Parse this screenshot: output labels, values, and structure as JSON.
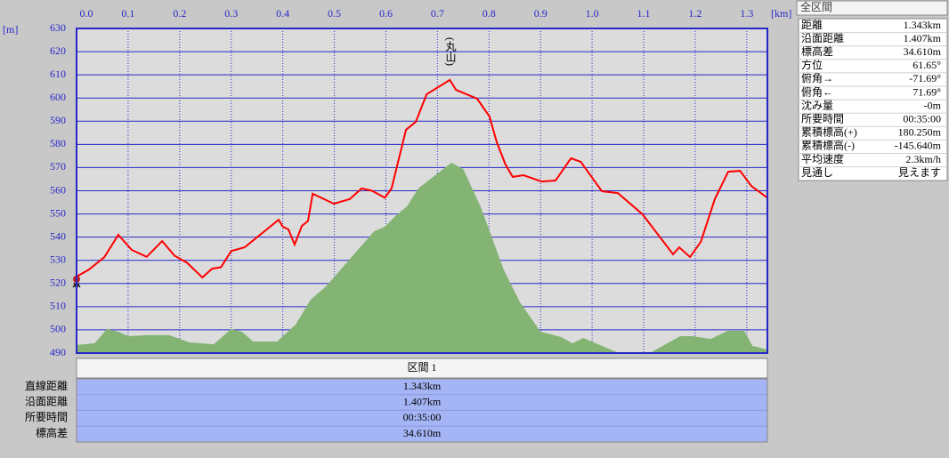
{
  "chart_data": {
    "type": "line",
    "xlabel": "[km]",
    "ylabel": "[m]",
    "xlim": [
      0,
      1.34
    ],
    "ylim": [
      490,
      630
    ],
    "xticks": [
      {
        "value": 0,
        "label": "0.0"
      },
      0.1,
      0.2,
      0.3,
      0.4,
      0.5,
      0.6,
      0.7,
      0.8,
      0.9,
      {
        "value": 1,
        "label": "1.0"
      },
      1.1,
      1.2,
      1.3
    ],
    "yticks": [
      490,
      500,
      510,
      520,
      530,
      540,
      550,
      560,
      570,
      580,
      590,
      600,
      610,
      620,
      630
    ],
    "grid": true,
    "annotation": {
      "text": "(丸山)",
      "x": 0.73
    },
    "series": [
      {
        "type": "area",
        "color": "#84b474",
        "x": [
          0,
          0.035,
          0.059,
          0.081,
          0.1,
          0.136,
          0.18,
          0.219,
          0.266,
          0.3,
          0.321,
          0.342,
          0.389,
          0.425,
          0.454,
          0.484,
          0.577,
          0.598,
          0.62,
          0.641,
          0.663,
          0.727,
          0.75,
          0.784,
          0.829,
          0.86,
          0.9,
          0.94,
          0.962,
          0.983,
          1.04,
          1.054,
          1.112,
          1.171,
          1.195,
          1.23,
          1.263,
          1.295,
          1.311,
          1.34
        ],
        "values": [
          493.5,
          494.2,
          500.4,
          499.2,
          497.3,
          497.7,
          497.7,
          494.6,
          493.8,
          500.4,
          499.2,
          495,
          495,
          502.3,
          513,
          518.8,
          542.5,
          544.5,
          549.4,
          553.3,
          561,
          572.1,
          569.4,
          553,
          525.7,
          511.9,
          499.2,
          496.9,
          494.2,
          496.5,
          491.1,
          490,
          490,
          497.3,
          497.3,
          496.1,
          499.6,
          499.6,
          493.1,
          491.5
        ]
      },
      {
        "type": "line",
        "color": "#ff0000",
        "x": [
          0,
          0.024,
          0.054,
          0.081,
          0.107,
          0.136,
          0.166,
          0.19,
          0.214,
          0.244,
          0.263,
          0.28,
          0.3,
          0.326,
          0.392,
          0.4,
          0.411,
          0.423,
          0.437,
          0.449,
          0.458,
          0.499,
          0.53,
          0.553,
          0.573,
          0.598,
          0.611,
          0.639,
          0.658,
          0.679,
          0.724,
          0.736,
          0.777,
          0.801,
          0.815,
          0.832,
          0.846,
          0.867,
          0.902,
          0.929,
          0.959,
          0.978,
          1.019,
          1.05,
          1.098,
          1.157,
          1.169,
          1.19,
          1.211,
          1.238,
          1.264,
          1.287,
          1.309,
          1.34
        ],
        "values": [
          523,
          526,
          531.4,
          541,
          534.5,
          531.5,
          538.3,
          532,
          529,
          522.6,
          526.4,
          527,
          534,
          535.6,
          547.5,
          544.5,
          543.3,
          536.8,
          544.8,
          547,
          558.7,
          554.4,
          556.4,
          561,
          560,
          557,
          561,
          586.3,
          589.7,
          601.6,
          607.8,
          603.5,
          599.7,
          592,
          581,
          571.3,
          566,
          566.7,
          564,
          564.4,
          574,
          572.5,
          559.8,
          559,
          549.8,
          532.6,
          535.6,
          531.4,
          538,
          556.4,
          568.2,
          568.6,
          562,
          557
        ]
      }
    ]
  },
  "summary": {
    "title": "全区間",
    "rows": [
      [
        "距離",
        "1.343km"
      ],
      [
        "沿面距離",
        "1.407km"
      ],
      [
        "標高差",
        "34.610m"
      ],
      [
        "方位",
        "61.65°"
      ],
      [
        "俯角→",
        "-71.69°"
      ],
      [
        "俯角←",
        "71.69°"
      ],
      [
        "沈み量",
        "-0m"
      ],
      [
        "所要時間",
        "00:35:00"
      ],
      [
        "累積標高(+)",
        "180.250m"
      ],
      [
        "累積標高(-)",
        "-145.640m"
      ],
      [
        "平均速度",
        "2.3km/h"
      ],
      [
        "見通し",
        "見えます"
      ]
    ]
  },
  "section": {
    "header": "区間 1",
    "rows": [
      [
        "直線距離",
        "1.343km"
      ],
      [
        "沿面距離",
        "1.407km"
      ],
      [
        "所要時間",
        "00:35:00"
      ],
      [
        "標高差",
        "34.610m"
      ]
    ]
  }
}
